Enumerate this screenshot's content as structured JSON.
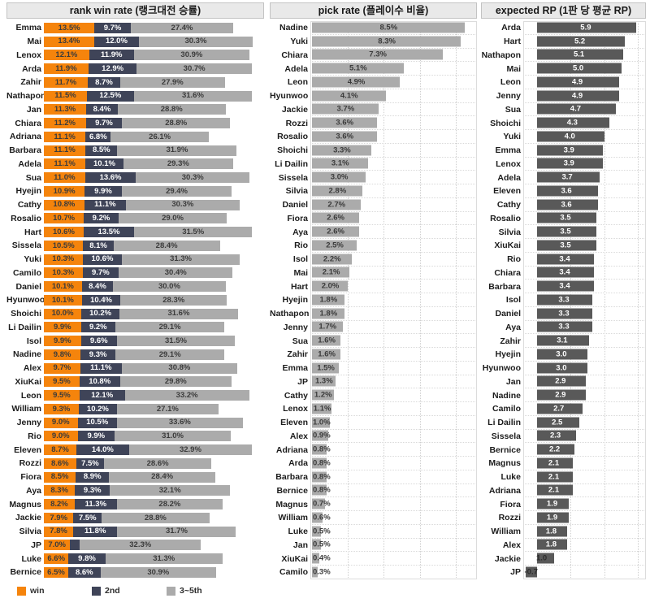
{
  "chart_data": [
    {
      "type": "bar",
      "variant": "stacked-horizontal",
      "title": "rank win rate (랭크대전 승률)",
      "legend": [
        "win",
        "2nd",
        "3~5th"
      ],
      "series_colors": [
        "#f5840c",
        "#3f4458",
        "#ababab"
      ],
      "value_suffix": "%",
      "grid": false,
      "legend_position": "bottom",
      "xlim": [
        0,
        58
      ],
      "categories": [
        "Emma",
        "Mai",
        "Lenox",
        "Arda",
        "Zahir",
        "Nathapon",
        "Jan",
        "Chiara",
        "Adriana",
        "Barbara",
        "Adela",
        "Sua",
        "Hyejin",
        "Cathy",
        "Rosalio",
        "Hart",
        "Sissela",
        "Yuki",
        "Camilo",
        "Daniel",
        "Hyunwoo",
        "Shoichi",
        "Li Dailin",
        "Isol",
        "Nadine",
        "Alex",
        "XiuKai",
        "Leon",
        "William",
        "Jenny",
        "Rio",
        "Eleven",
        "Rozzi",
        "Fiora",
        "Aya",
        "Magnus",
        "Jackie",
        "Silvia",
        "JP",
        "Luke",
        "Bernice"
      ],
      "series": [
        {
          "name": "win",
          "values": [
            13.5,
            13.4,
            12.1,
            11.9,
            11.7,
            11.5,
            11.3,
            11.2,
            11.1,
            11.1,
            11.1,
            11.0,
            10.9,
            10.8,
            10.7,
            10.6,
            10.5,
            10.3,
            10.3,
            10.1,
            10.1,
            10.0,
            9.9,
            9.9,
            9.8,
            9.7,
            9.5,
            9.5,
            9.3,
            9.0,
            9.0,
            8.7,
            8.6,
            8.5,
            8.3,
            8.2,
            7.9,
            7.8,
            7.0,
            6.6,
            6.5
          ]
        },
        {
          "name": "2nd",
          "values": [
            9.7,
            12.0,
            11.9,
            12.9,
            8.7,
            12.5,
            8.4,
            9.7,
            6.8,
            8.5,
            10.1,
            13.6,
            9.9,
            11.1,
            9.2,
            13.5,
            8.1,
            10.6,
            9.7,
            8.4,
            10.4,
            10.2,
            9.2,
            9.6,
            9.3,
            11.1,
            10.8,
            12.1,
            10.2,
            10.5,
            9.9,
            14.0,
            7.5,
            8.9,
            9.3,
            11.3,
            7.5,
            11.8,
            2.6,
            9.8,
            8.6
          ]
        },
        {
          "name": "3~5th",
          "values": [
            27.4,
            30.3,
            30.9,
            30.7,
            27.9,
            31.6,
            28.8,
            28.8,
            26.1,
            31.9,
            29.3,
            30.3,
            29.4,
            30.3,
            29.0,
            31.5,
            28.4,
            31.3,
            30.4,
            30.0,
            28.3,
            31.6,
            29.1,
            31.5,
            29.1,
            30.8,
            29.8,
            33.2,
            27.1,
            33.6,
            31.0,
            32.9,
            28.6,
            28.4,
            32.1,
            28.2,
            28.8,
            31.7,
            32.3,
            31.3,
            30.9
          ]
        }
      ],
      "unlabeled_segments": [
        {
          "category": "JP",
          "series": "2nd",
          "approx_value_from_bar_width": 2.6
        }
      ]
    },
    {
      "type": "bar",
      "variant": "horizontal",
      "title": "pick rate (플레이수 비율)",
      "bar_color": "#ababab",
      "value_suffix": "%",
      "grid": true,
      "xlim": [
        0,
        9.2
      ],
      "categories": [
        "Nadine",
        "Yuki",
        "Chiara",
        "Adela",
        "Leon",
        "Hyunwoo",
        "Jackie",
        "Rozzi",
        "Rosalio",
        "Shoichi",
        "Li Dailin",
        "Sissela",
        "Silvia",
        "Daniel",
        "Fiora",
        "Aya",
        "Rio",
        "Isol",
        "Mai",
        "Hart",
        "Hyejin",
        "Nathapon",
        "Jenny",
        "Sua",
        "Zahir",
        "Emma",
        "JP",
        "Cathy",
        "Lenox",
        "Eleven",
        "Alex",
        "Adriana",
        "Arda",
        "Barbara",
        "Bernice",
        "Magnus",
        "William",
        "Luke",
        "Jan",
        "XiuKai",
        "Camilo"
      ],
      "values": [
        8.5,
        8.3,
        7.3,
        5.1,
        4.9,
        4.1,
        3.7,
        3.6,
        3.6,
        3.3,
        3.1,
        3.0,
        2.8,
        2.7,
        2.6,
        2.6,
        2.5,
        2.2,
        2.1,
        2.0,
        1.8,
        1.8,
        1.7,
        1.6,
        1.6,
        1.5,
        1.3,
        1.2,
        1.1,
        1.0,
        0.9,
        0.8,
        0.8,
        0.8,
        0.8,
        0.7,
        0.6,
        0.5,
        0.5,
        0.4,
        0.3
      ]
    },
    {
      "type": "bar",
      "variant": "horizontal",
      "title": "expected RP (1판 당 평균 RP)",
      "bar_color": "#595959",
      "value_suffix": "",
      "grid": true,
      "xlim": [
        -0.8,
        6.3
      ],
      "categories": [
        "Arda",
        "Hart",
        "Nathapon",
        "Mai",
        "Leon",
        "Jenny",
        "Sua",
        "Shoichi",
        "Yuki",
        "Emma",
        "Lenox",
        "Adela",
        "Eleven",
        "Cathy",
        "Rosalio",
        "Silvia",
        "XiuKai",
        "Rio",
        "Chiara",
        "Barbara",
        "Isol",
        "Daniel",
        "Aya",
        "Zahir",
        "Hyejin",
        "Hyunwoo",
        "Jan",
        "Nadine",
        "Camilo",
        "Li Dailin",
        "Sissela",
        "Bernice",
        "Magnus",
        "Luke",
        "Adriana",
        "Fiora",
        "Rozzi",
        "William",
        "Alex",
        "Jackie",
        "JP"
      ],
      "values": [
        5.9,
        5.2,
        5.1,
        5.0,
        4.9,
        4.9,
        4.7,
        4.3,
        4.0,
        3.9,
        3.9,
        3.7,
        3.6,
        3.6,
        3.5,
        3.5,
        3.5,
        3.4,
        3.4,
        3.4,
        3.3,
        3.3,
        3.3,
        3.1,
        3.0,
        3.0,
        2.9,
        2.9,
        2.7,
        2.5,
        2.3,
        2.2,
        2.1,
        2.1,
        2.1,
        1.9,
        1.9,
        1.8,
        1.8,
        1.0,
        -0.7
      ]
    }
  ],
  "colors": {
    "win": "#f5840c",
    "second": "#3f4458",
    "rest_3_5": "#ababab",
    "expected_rp_bar": "#595959",
    "panel_header_bg": "#e9e9e9",
    "panel_header_border": "#c3c3c3",
    "grid_dotted": "#d9d9d9",
    "label_text": "#1c1c1c"
  }
}
